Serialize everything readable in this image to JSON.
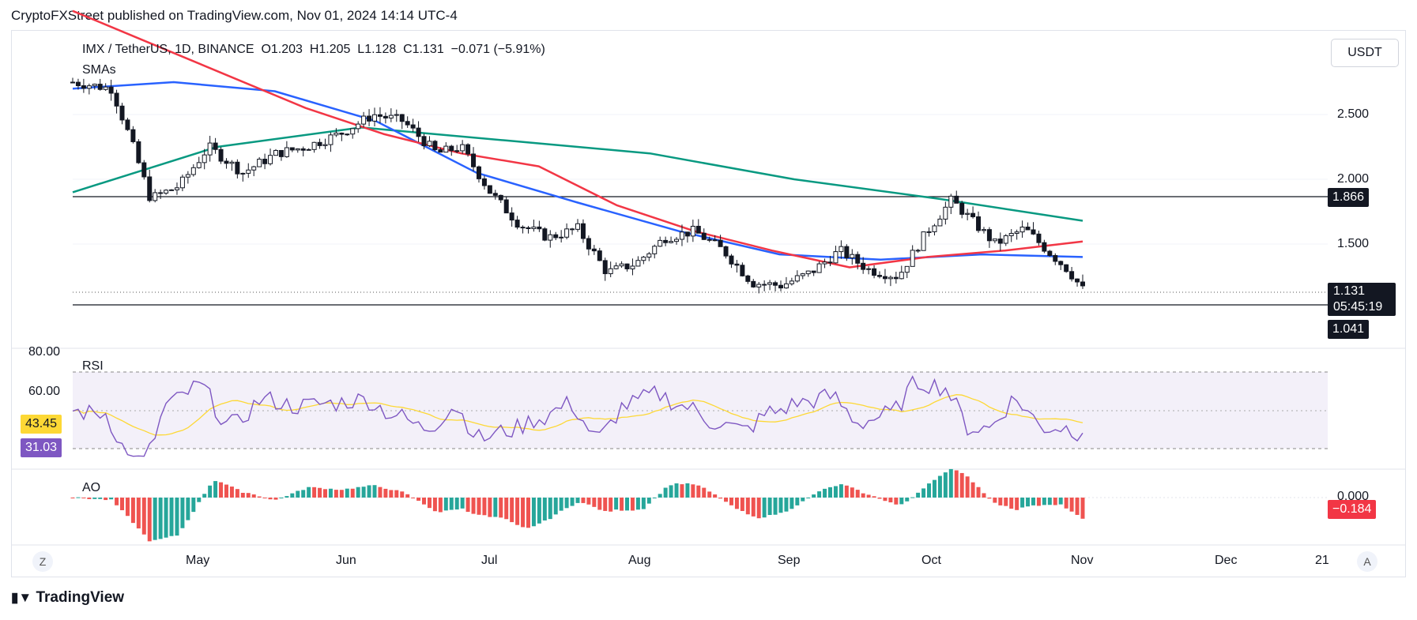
{
  "header": {
    "text": "CryptoFXStreet published on TradingView.com, Nov 01, 2024 14:14 UTC-4"
  },
  "footer": {
    "logo_text": "TradingView"
  },
  "currency_button": "USDT",
  "buttons": {
    "z_label": "Z",
    "a_label": "A"
  },
  "price_pane": {
    "legend": {
      "symbol": "IMX / TetherUS, 1D, BINANCE",
      "open": "O1.203",
      "high": "H1.205",
      "low": "L1.128",
      "close": "C1.131",
      "change": "−0.071 (−5.91%)",
      "indicator": "SMAs"
    },
    "axis_ticks": [
      "2.500",
      "2.000",
      "1.500"
    ],
    "badges": {
      "level_top": "1.866",
      "last": "1.131",
      "countdown": "05:45:19",
      "level_bottom": "1.041"
    }
  },
  "rsi_pane": {
    "label": "RSI",
    "axis_ticks": [
      "80.00",
      "60.00"
    ],
    "badges": {
      "ma": "43.45",
      "rsi": "31.03"
    }
  },
  "ao_pane": {
    "label": "AO",
    "axis_ticks": [
      "0.000"
    ],
    "badges": {
      "value": "−0.184"
    }
  },
  "time_axis": [
    "May",
    "Jun",
    "Jul",
    "Aug",
    "Sep",
    "Oct",
    "Nov",
    "Dec",
    "21"
  ],
  "colors": {
    "up": "#089981",
    "down": "#f23645",
    "sma_red": "#f23645",
    "sma_blue": "#2962ff",
    "sma_green": "#089981",
    "rsi_line": "#7e57c2",
    "rsi_ma": "#fdd835",
    "rsi_band": "#7e57c2",
    "ao_up": "#26a69a",
    "ao_down": "#ef5350"
  },
  "chart_data": {
    "type": "candlestick",
    "horizontal_levels": [
      1.866,
      1.041
    ],
    "last_price": 1.131,
    "y_axis_ticks": [
      2.5,
      2.0,
      1.5
    ],
    "sma_fast": [
      3.3,
      3.05,
      2.8,
      2.55,
      2.35,
      2.2,
      2.1,
      1.8,
      1.6,
      1.45,
      1.32,
      1.4,
      1.45,
      1.52
    ],
    "sma_mid": [
      2.7,
      2.75,
      2.68,
      2.45,
      2.05,
      1.82,
      1.6,
      1.42,
      1.38,
      1.42,
      1.4
    ],
    "sma_slow": [
      1.9,
      2.25,
      2.4,
      2.3,
      2.2,
      2.0,
      1.85,
      1.68
    ],
    "rsi_band": [
      30,
      70
    ],
    "rsi_last": 31.03,
    "rsi_ma_last": 43.45,
    "ao_last": -0.184
  }
}
